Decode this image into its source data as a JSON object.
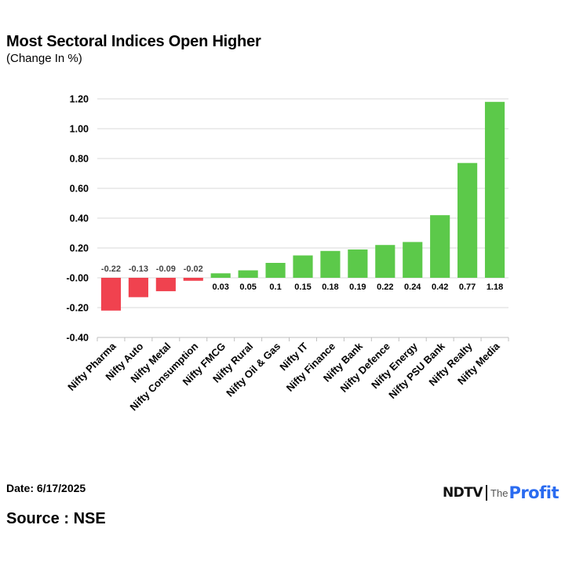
{
  "title": "Most Sectoral Indices Open Higher",
  "subtitle": "(Change In %)",
  "footer": {
    "date": "Date: 6/17/2025",
    "source": "Source : NSE"
  },
  "logo": {
    "brand": "NDTV",
    "the": "The",
    "profit": "Profit"
  },
  "colors": {
    "positive": "#5cc94a",
    "negative": "#f0424f",
    "grid": "#d9d9d9",
    "axis": "#bfbfbf",
    "profit_accent": "#2a6bf0"
  },
  "chart_data": {
    "type": "bar",
    "categories": [
      "Nifty Pharma",
      "Nifty Auto",
      "Nifty Metal",
      "Nifty Consumption",
      "Nifty FMCG",
      "Nifty Rural",
      "Nifty Oil & Gas",
      "Nifty IT",
      "Nifty Finance",
      "Nifty Bank",
      "Nifty Defence",
      "Nifty Energy",
      "Nifty PSU Bank",
      "Nifty Realty",
      "Nifty Media"
    ],
    "values": [
      -0.22,
      -0.13,
      -0.09,
      -0.02,
      0.03,
      0.05,
      0.1,
      0.15,
      0.18,
      0.19,
      0.22,
      0.24,
      0.42,
      0.77,
      1.18
    ],
    "value_labels": [
      "-0.22",
      "-0.13",
      "-0.09",
      "-0.02",
      "0.03",
      "0.05",
      "0.1",
      "0.15",
      "0.18",
      "0.19",
      "0.22",
      "0.24",
      "0.42",
      "0.77",
      "1.18"
    ],
    "yticks": [
      1.2,
      1.0,
      0.8,
      0.6,
      0.4,
      0.2,
      0.0,
      -0.2,
      -0.4
    ],
    "ytick_labels": [
      "1.20",
      "1.00",
      "0.80",
      "0.60",
      "0.40",
      "0.20",
      "-0.00",
      "-0.20",
      "-0.40"
    ],
    "ylim": [
      -0.4,
      1.2
    ],
    "grid": true,
    "legend": "none",
    "xlabel": "",
    "ylabel": ""
  }
}
